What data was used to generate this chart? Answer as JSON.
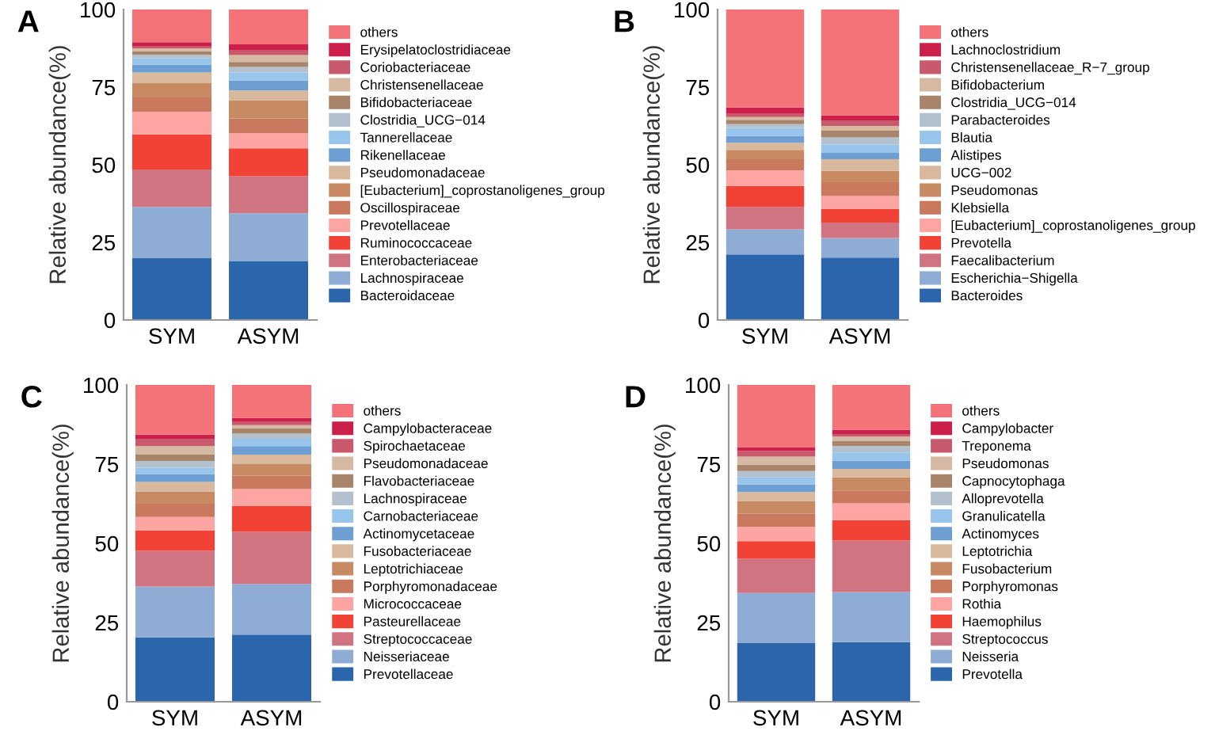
{
  "chart_data": [
    {
      "type": "bar",
      "title": "A",
      "ylabel": "Relative abundance(%)",
      "categories": [
        "SYM",
        "ASYM"
      ],
      "stacked": true,
      "ylim": [
        0,
        100
      ],
      "yticks": [
        0,
        25,
        50,
        75,
        100
      ],
      "grid": false,
      "legend": "right",
      "series": [
        {
          "name": "Bacteroidaceae",
          "color": "#2b65ac",
          "values": [
            20.0,
            19.0
          ]
        },
        {
          "name": "Lachnospiraceae",
          "color": "#8eacd4",
          "values": [
            16.4,
            15.4
          ]
        },
        {
          "name": "Enterobacteriaceae",
          "color": "#cf7480",
          "values": [
            12.1,
            11.9
          ]
        },
        {
          "name": "Ruminococcaceae",
          "color": "#f24236",
          "values": [
            11.2,
            9.0
          ]
        },
        {
          "name": "Prevotellaceae",
          "color": "#fca5a3",
          "values": [
            7.4,
            4.9
          ]
        },
        {
          "name": "Oscillospiraceae",
          "color": "#c97a5e",
          "values": [
            4.6,
            4.7
          ]
        },
        {
          "name": "[Eubacterium]_coprostanoligenes_group",
          "color": "#c88a63",
          "values": [
            4.6,
            5.9
          ]
        },
        {
          "name": "Pseudomonadaceae",
          "color": "#d8b99e",
          "values": [
            3.4,
            3.1
          ]
        },
        {
          "name": "Rikenellaceae",
          "color": "#6e9fd2",
          "values": [
            2.5,
            3.2
          ]
        },
        {
          "name": "Tannerellaceae",
          "color": "#98c5ec",
          "values": [
            2.2,
            2.6
          ]
        },
        {
          "name": "Clostridia_UCG−014",
          "color": "#b3c1cf",
          "values": [
            1.0,
            1.8
          ]
        },
        {
          "name": "Bifidobacteriaceae",
          "color": "#a8846b",
          "values": [
            1.2,
            1.6
          ]
        },
        {
          "name": "Christensenellaceae",
          "color": "#d6b9a2",
          "values": [
            0.9,
            2.2
          ]
        },
        {
          "name": "Coriobacteriaceae",
          "color": "#c95a6e",
          "values": [
            0.6,
            1.5
          ]
        },
        {
          "name": "Erysipelatoclostridiaceae",
          "color": "#cc1f49",
          "values": [
            1.4,
            2.0
          ]
        },
        {
          "name": "others",
          "color": "#f47378",
          "values": [
            10.5,
            11.2
          ]
        }
      ]
    },
    {
      "type": "bar",
      "title": "B",
      "ylabel": "Relative abundance(%)",
      "categories": [
        "SYM",
        "ASYM"
      ],
      "stacked": true,
      "ylim": [
        0,
        100
      ],
      "yticks": [
        0,
        25,
        50,
        75,
        100
      ],
      "grid": false,
      "legend": "right",
      "series": [
        {
          "name": "Bacteroides",
          "color": "#2b65ac",
          "values": [
            21.1,
            20.1
          ]
        },
        {
          "name": "Escherichia−Shigella",
          "color": "#8eacd4",
          "values": [
            8.1,
            6.3
          ]
        },
        {
          "name": "Faecalibacterium",
          "color": "#cf7480",
          "values": [
            7.2,
            5.0
          ]
        },
        {
          "name": "Prevotella",
          "color": "#f24236",
          "values": [
            6.8,
            4.3
          ]
        },
        {
          "name": "[Eubacterium]_coprostanoligenes_group",
          "color": "#fca5a3",
          "values": [
            5.0,
            4.2
          ]
        },
        {
          "name": "Klebsiella",
          "color": "#c97a5e",
          "values": [
            3.6,
            4.5
          ]
        },
        {
          "name": "Pseudomonas",
          "color": "#c88a63",
          "values": [
            3.0,
            3.6
          ]
        },
        {
          "name": "UCG−002",
          "color": "#d8b99e",
          "values": [
            2.3,
            3.8
          ]
        },
        {
          "name": "Alistipes",
          "color": "#6e9fd2",
          "values": [
            2.2,
            2.0
          ]
        },
        {
          "name": "Blautia",
          "color": "#98c5ec",
          "values": [
            2.5,
            2.7
          ]
        },
        {
          "name": "Parabacteroides",
          "color": "#b3c1cf",
          "values": [
            1.3,
            2.3
          ]
        },
        {
          "name": "Clostridia_UCG−014",
          "color": "#a8846b",
          "values": [
            1.4,
            2.2
          ]
        },
        {
          "name": "Bifidobacterium",
          "color": "#d6b9a2",
          "values": [
            0.9,
            1.5
          ]
        },
        {
          "name": "Christensenellaceae_R−7_group",
          "color": "#c95a6e",
          "values": [
            1.0,
            1.8
          ]
        },
        {
          "name": "Lachnoclostridium",
          "color": "#cc1f49",
          "values": [
            2.0,
            1.6
          ]
        },
        {
          "name": "others",
          "color": "#f47378",
          "values": [
            31.6,
            34.1
          ]
        }
      ]
    },
    {
      "type": "bar",
      "title": "C",
      "ylabel": "Relative abundance(%)",
      "categories": [
        "SYM",
        "ASYM"
      ],
      "stacked": true,
      "ylim": [
        0,
        100
      ],
      "yticks": [
        0,
        25,
        50,
        75,
        100
      ],
      "grid": false,
      "legend": "right",
      "series": [
        {
          "name": "Prevotellaceae",
          "color": "#2b65ac",
          "values": [
            20.3,
            21.2
          ]
        },
        {
          "name": "Neisseriaceae",
          "color": "#8eacd4",
          "values": [
            16.1,
            16.0
          ]
        },
        {
          "name": "Streptococcaceae",
          "color": "#cf7480",
          "values": [
            11.2,
            16.4
          ]
        },
        {
          "name": "Pasteurellaceae",
          "color": "#f24236",
          "values": [
            6.4,
            8.2
          ]
        },
        {
          "name": "Micrococcaceae",
          "color": "#fca5a3",
          "values": [
            4.3,
            5.3
          ]
        },
        {
          "name": "Porphyromonadaceae",
          "color": "#c97a5e",
          "values": [
            4.2,
            4.3
          ]
        },
        {
          "name": "Leptotrichiaceae",
          "color": "#c88a63",
          "values": [
            3.9,
            3.6
          ]
        },
        {
          "name": "Fusobacteriaceae",
          "color": "#d8b99e",
          "values": [
            3.0,
            3.0
          ]
        },
        {
          "name": "Actinomycetaceae",
          "color": "#6e9fd2",
          "values": [
            2.5,
            2.7
          ]
        },
        {
          "name": "Carnobacteriaceae",
          "color": "#98c5ec",
          "values": [
            2.0,
            2.3
          ]
        },
        {
          "name": "Lachnospiraceae",
          "color": "#b3c1cf",
          "values": [
            2.1,
            1.6
          ]
        },
        {
          "name": "Flavobacteriaceae",
          "color": "#a8846b",
          "values": [
            2.0,
            1.7
          ]
        },
        {
          "name": "Pseudomonadaceae",
          "color": "#d6b9a2",
          "values": [
            2.7,
            1.0
          ]
        },
        {
          "name": "Spirochaetaceae",
          "color": "#c95a6e",
          "values": [
            2.3,
            1.0
          ]
        },
        {
          "name": "Campylobacteraceae",
          "color": "#cc1f49",
          "values": [
            1.3,
            1.3
          ]
        },
        {
          "name": "others",
          "color": "#f47378",
          "values": [
            15.7,
            10.4
          ]
        }
      ]
    },
    {
      "type": "bar",
      "title": "D",
      "ylabel": "Relative abundance(%)",
      "categories": [
        "SYM",
        "ASYM"
      ],
      "stacked": true,
      "ylim": [
        0,
        100
      ],
      "yticks": [
        0,
        25,
        50,
        75,
        100
      ],
      "grid": false,
      "legend": "right",
      "series": [
        {
          "name": "Prevotella",
          "color": "#2b65ac",
          "values": [
            18.5,
            18.8
          ]
        },
        {
          "name": "Neisseria",
          "color": "#8eacd4",
          "values": [
            15.8,
            15.8
          ]
        },
        {
          "name": "Streptococcus",
          "color": "#cf7480",
          "values": [
            10.8,
            16.3
          ]
        },
        {
          "name": "Haemophilus",
          "color": "#f24236",
          "values": [
            5.6,
            6.4
          ]
        },
        {
          "name": "Rothia",
          "color": "#fca5a3",
          "values": [
            4.5,
            5.3
          ]
        },
        {
          "name": "Porphyromonas",
          "color": "#c97a5e",
          "values": [
            4.1,
            4.1
          ]
        },
        {
          "name": "Fusobacterium",
          "color": "#c88a63",
          "values": [
            4.1,
            4.1
          ]
        },
        {
          "name": "Leptotrichia",
          "color": "#d8b99e",
          "values": [
            2.8,
            2.7
          ]
        },
        {
          "name": "Actinomyces",
          "color": "#6e9fd2",
          "values": [
            2.4,
            2.6
          ]
        },
        {
          "name": "Granulicatella",
          "color": "#98c5ec",
          "values": [
            2.2,
            2.6
          ]
        },
        {
          "name": "Alloprevotella",
          "color": "#b3c1cf",
          "values": [
            2.0,
            2.0
          ]
        },
        {
          "name": "Capnocytophaga",
          "color": "#a8846b",
          "values": [
            2.0,
            1.7
          ]
        },
        {
          "name": "Pseudomonas",
          "color": "#d6b9a2",
          "values": [
            2.6,
            1.3
          ]
        },
        {
          "name": "Treponema",
          "color": "#c95a6e",
          "values": [
            1.7,
            0.8
          ]
        },
        {
          "name": "Campylobacter",
          "color": "#cc1f49",
          "values": [
            1.3,
            1.3
          ]
        },
        {
          "name": "others",
          "color": "#f47378",
          "values": [
            19.6,
            14.2
          ]
        }
      ]
    }
  ]
}
